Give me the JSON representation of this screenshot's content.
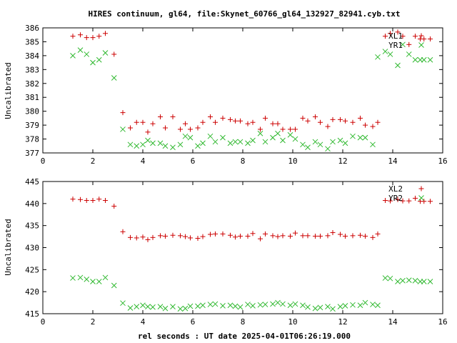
{
  "title": "HIRES continuum, gl64, file:Skynet_60766_gl64_132927_82941.cyb.txt",
  "xlabel": "rel seconds : UT date 2025-04-01T06:26:19.000",
  "colors": {
    "series1": "#cc0000",
    "series2": "#2eb82e"
  },
  "chart_data": [
    {
      "type": "scatter",
      "ylabel": "Uncalibrated",
      "xlim": [
        0,
        16
      ],
      "ylim": [
        377,
        386
      ],
      "xticks": [
        "0",
        "2",
        "4",
        "6",
        "8",
        "10",
        "12",
        "14",
        "16"
      ],
      "yticks": [
        "377",
        "378",
        "379",
        "380",
        "381",
        "382",
        "383",
        "384",
        "385",
        "386"
      ],
      "legend_position": "top-right",
      "grid": false,
      "series": [
        {
          "name": "XL1",
          "marker": "+",
          "color": "#cc0000",
          "x": [
            1.2,
            1.5,
            1.75,
            2.0,
            2.25,
            2.5,
            2.85,
            3.2,
            3.5,
            3.75,
            4.0,
            4.2,
            4.4,
            4.7,
            4.9,
            5.2,
            5.5,
            5.7,
            5.9,
            6.2,
            6.4,
            6.7,
            6.9,
            7.2,
            7.5,
            7.7,
            7.9,
            8.2,
            8.4,
            8.7,
            8.9,
            9.2,
            9.4,
            9.6,
            9.9,
            10.1,
            10.4,
            10.6,
            10.9,
            11.1,
            11.4,
            11.6,
            11.9,
            12.1,
            12.4,
            12.7,
            12.9,
            13.2,
            13.4,
            13.7,
            13.9,
            14.2,
            14.4,
            14.65,
            14.9,
            15.1,
            15.25,
            15.5
          ],
          "y": [
            385.4,
            385.5,
            385.3,
            385.3,
            385.4,
            385.6,
            384.1,
            379.9,
            378.8,
            379.2,
            379.2,
            378.5,
            379.1,
            379.6,
            378.8,
            379.6,
            378.7,
            379.1,
            378.7,
            378.8,
            379.2,
            379.6,
            379.2,
            379.5,
            379.4,
            379.3,
            379.3,
            379.1,
            379.2,
            378.7,
            379.5,
            379.1,
            379.1,
            378.7,
            378.7,
            378.7,
            379.5,
            379.3,
            379.6,
            379.2,
            378.9,
            379.4,
            379.4,
            379.3,
            379.2,
            379.5,
            379.0,
            378.9,
            379.2,
            385.4,
            385.6,
            385.7,
            385.4,
            384.8,
            385.4,
            385.2,
            385.2,
            385.2
          ]
        },
        {
          "name": "YR1",
          "marker": "x",
          "color": "#2eb82e",
          "x": [
            1.2,
            1.5,
            1.75,
            2.0,
            2.25,
            2.5,
            2.85,
            3.2,
            3.5,
            3.75,
            4.0,
            4.2,
            4.4,
            4.7,
            4.9,
            5.2,
            5.5,
            5.7,
            5.9,
            6.2,
            6.4,
            6.7,
            6.9,
            7.2,
            7.5,
            7.7,
            7.9,
            8.2,
            8.4,
            8.7,
            8.9,
            9.2,
            9.4,
            9.6,
            9.9,
            10.1,
            10.4,
            10.6,
            10.9,
            11.1,
            11.4,
            11.6,
            11.9,
            12.1,
            12.4,
            12.7,
            12.9,
            13.2,
            13.4,
            13.7,
            13.9,
            14.2,
            14.4,
            14.65,
            14.9,
            15.1,
            15.25,
            15.5
          ],
          "y": [
            384.0,
            384.4,
            384.1,
            383.5,
            383.7,
            384.2,
            382.4,
            378.7,
            377.6,
            377.5,
            377.6,
            377.9,
            377.7,
            377.7,
            377.5,
            377.4,
            377.6,
            378.2,
            378.1,
            377.5,
            377.7,
            378.2,
            377.8,
            378.1,
            377.7,
            377.8,
            377.8,
            377.7,
            377.9,
            378.4,
            377.8,
            378.1,
            378.4,
            377.9,
            378.3,
            378.0,
            377.6,
            377.4,
            377.8,
            377.6,
            377.3,
            377.8,
            377.9,
            377.7,
            378.2,
            378.1,
            378.1,
            377.6,
            383.9,
            384.3,
            384.1,
            383.3,
            384.8,
            384.1,
            383.7,
            383.7,
            383.7,
            383.7
          ]
        }
      ]
    },
    {
      "type": "scatter",
      "ylabel": "Uncalibrated",
      "xlim": [
        0,
        16
      ],
      "ylim": [
        415,
        445
      ],
      "xticks": [
        "0",
        "2",
        "4",
        "6",
        "8",
        "10",
        "12",
        "14",
        "16"
      ],
      "yticks": [
        "415",
        "420",
        "425",
        "430",
        "435",
        "440",
        "445"
      ],
      "legend_position": "top-right",
      "grid": false,
      "series": [
        {
          "name": "XL2",
          "marker": "+",
          "color": "#cc0000",
          "x": [
            1.2,
            1.5,
            1.75,
            2.0,
            2.25,
            2.5,
            2.85,
            3.2,
            3.5,
            3.75,
            4.0,
            4.2,
            4.4,
            4.7,
            4.9,
            5.2,
            5.5,
            5.7,
            5.9,
            6.2,
            6.4,
            6.7,
            6.9,
            7.2,
            7.5,
            7.7,
            7.9,
            8.2,
            8.4,
            8.7,
            8.9,
            9.2,
            9.4,
            9.6,
            9.9,
            10.1,
            10.4,
            10.6,
            10.9,
            11.1,
            11.4,
            11.6,
            11.9,
            12.1,
            12.4,
            12.7,
            12.9,
            13.2,
            13.4,
            13.7,
            13.9,
            14.2,
            14.4,
            14.65,
            14.9,
            15.1,
            15.25,
            15.5
          ],
          "y": [
            441.0,
            440.9,
            440.7,
            440.7,
            441.0,
            440.7,
            439.4,
            433.6,
            432.3,
            432.2,
            432.4,
            431.8,
            432.3,
            432.7,
            432.6,
            432.8,
            432.7,
            432.5,
            432.2,
            432.1,
            432.5,
            433.0,
            433.1,
            433.1,
            432.8,
            432.4,
            432.6,
            432.6,
            433.2,
            432.0,
            433.1,
            432.7,
            432.5,
            432.7,
            432.6,
            433.3,
            432.7,
            432.7,
            432.6,
            432.6,
            432.7,
            433.4,
            433.0,
            432.6,
            432.7,
            432.8,
            432.6,
            432.3,
            433.1,
            440.7,
            440.6,
            440.9,
            440.6,
            440.6,
            441.2,
            440.5,
            440.5,
            440.5
          ]
        },
        {
          "name": "YR2",
          "marker": "x",
          "color": "#2eb82e",
          "x": [
            1.2,
            1.5,
            1.75,
            2.0,
            2.25,
            2.5,
            2.85,
            3.2,
            3.5,
            3.75,
            4.0,
            4.2,
            4.4,
            4.7,
            4.9,
            5.2,
            5.5,
            5.7,
            5.9,
            6.2,
            6.4,
            6.7,
            6.9,
            7.2,
            7.5,
            7.7,
            7.9,
            8.2,
            8.4,
            8.7,
            8.9,
            9.2,
            9.4,
            9.6,
            9.9,
            10.1,
            10.4,
            10.6,
            10.9,
            11.1,
            11.4,
            11.6,
            11.9,
            12.1,
            12.4,
            12.7,
            12.9,
            13.2,
            13.4,
            13.7,
            13.9,
            14.2,
            14.4,
            14.65,
            14.9,
            15.1,
            15.25,
            15.5
          ],
          "y": [
            423.1,
            423.2,
            422.8,
            422.3,
            422.3,
            423.2,
            421.4,
            417.4,
            416.3,
            416.6,
            416.9,
            416.6,
            416.5,
            416.6,
            416.2,
            416.6,
            416.1,
            416.2,
            416.7,
            416.7,
            416.9,
            417.1,
            417.2,
            416.8,
            416.9,
            416.7,
            416.5,
            417.1,
            416.8,
            417.0,
            417.1,
            417.2,
            417.5,
            417.2,
            416.9,
            417.2,
            416.9,
            416.5,
            416.2,
            416.4,
            416.6,
            416.1,
            416.6,
            416.8,
            417.0,
            416.9,
            417.5,
            417.1,
            416.9,
            423.1,
            423.0,
            422.3,
            422.5,
            422.6,
            422.5,
            422.3,
            422.3,
            422.3
          ]
        }
      ]
    }
  ]
}
